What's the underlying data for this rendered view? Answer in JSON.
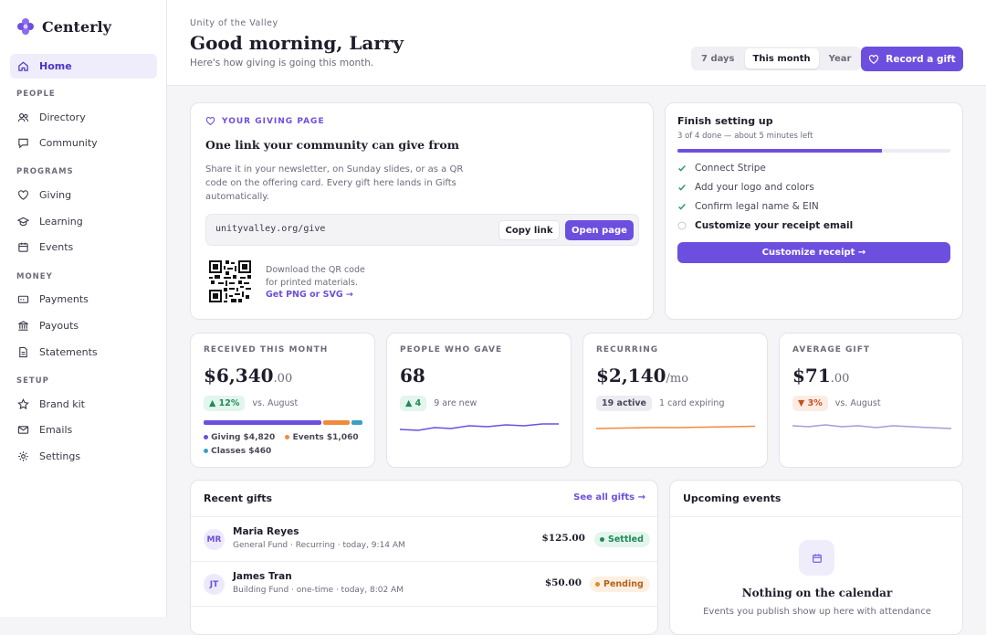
{
  "brand": {
    "name": "Centerly",
    "logo_icon": "flower-logo-icon",
    "accent": "#6d4fe0"
  },
  "sidebar": {
    "home": "Home",
    "sections": [
      {
        "title": "PEOPLE",
        "items": [
          "Directory",
          "Community"
        ]
      },
      {
        "title": "PROGRAMS",
        "items": [
          "Giving",
          "Learning",
          "Events"
        ]
      },
      {
        "title": "MONEY",
        "items": [
          "Payments",
          "Payouts",
          "Statements"
        ]
      },
      {
        "title": "SETUP",
        "items": [
          "Brand kit",
          "Emails",
          "Settings"
        ]
      }
    ]
  },
  "header": {
    "org": "Unity of the Valley",
    "greeting": "Good morning, Larry",
    "subtitle": "Here's how giving is going this month.",
    "ranges": [
      "7 days",
      "This month",
      "Year"
    ],
    "selected_range": "This month",
    "record_gift": "Record a gift"
  },
  "giving_page": {
    "eyebrow": "YOUR GIVING PAGE",
    "title": "One link your community can give from",
    "body": "Share it in your newsletter, on Sunday slides, or as a QR code on the offering card. Every gift here lands in Gifts automatically.",
    "url": "unityvalley.org/give",
    "copy": "Copy link",
    "open": "Open page",
    "qr_text_1": "Download the QR code",
    "qr_text_2": "for printed materials.",
    "qr_link": "Get PNG or SVG →"
  },
  "setup": {
    "title": "Finish setting up",
    "progress_text": "3 of 4 done — about 5 minutes left",
    "progress": 0.75,
    "items": [
      {
        "label": "Connect Stripe",
        "done": true
      },
      {
        "label": "Add your logo and colors",
        "done": true
      },
      {
        "label": "Confirm legal name & EIN",
        "done": true
      },
      {
        "label": "Customize your receipt email",
        "done": false
      }
    ],
    "cta": "Customize receipt →"
  },
  "stats": {
    "received": {
      "label": "RECEIVED THIS MONTH",
      "value": "$6,340",
      "cents": ".00",
      "delta": "▲ 12%",
      "delta_note": "vs. August",
      "breakdown": [
        {
          "name": "Giving $4,820",
          "amount": 4820,
          "color": "#6d4fe0"
        },
        {
          "name": "Events $1,060",
          "amount": 1060,
          "color": "#f08a3e"
        },
        {
          "name": "Classes $460",
          "amount": 460,
          "color": "#3aa0c8"
        }
      ]
    },
    "people": {
      "label": "PEOPLE WHO GAVE",
      "value": "68",
      "delta": "▲ 4",
      "delta_note": "9 are new"
    },
    "recurring": {
      "label": "RECURRING",
      "value": "$2,140",
      "unit": "/mo",
      "pill": "19 active",
      "note": "1 card expiring"
    },
    "average": {
      "label": "AVERAGE GIFT",
      "value": "$71",
      "cents": ".00",
      "delta": "▼ 3%",
      "delta_note": "vs. August"
    }
  },
  "recent": {
    "title": "Recent gifts",
    "see_all": "See all gifts →",
    "gifts": [
      {
        "initials": "MR",
        "name": "Maria Reyes",
        "meta": "General Fund · Recurring · today, 9:14 AM",
        "amount": "$125.00",
        "status": "Settled"
      },
      {
        "initials": "JT",
        "name": "James Tran",
        "meta": "Building Fund · one-time · today, 8:02 AM",
        "amount": "$50.00",
        "status": "Pending"
      }
    ]
  },
  "events": {
    "title": "Upcoming events",
    "empty_title": "Nothing on the calendar",
    "empty_body": "Events you publish show up here with attendance"
  }
}
